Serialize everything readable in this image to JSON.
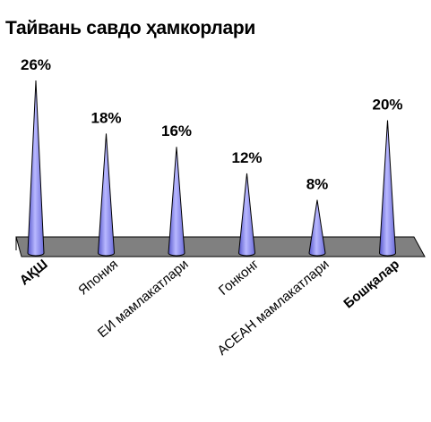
{
  "chart_data": {
    "type": "bar",
    "title": "Тайвань савдо ҳамкорлари",
    "categories": [
      "АҚШ",
      "Япония",
      "ЕИ мамлакатлари",
      "Гонконг",
      "АСЕАН мамлакатлари",
      "Бошқалар"
    ],
    "values": [
      26,
      18,
      16,
      12,
      8,
      20
    ],
    "unit": "%",
    "ylim": [
      0,
      26
    ],
    "grid": false,
    "legend": "none"
  },
  "colors": {
    "cone_fill": "#9999ff",
    "cone_stroke": "#000000",
    "floor_fill": "#808080"
  }
}
